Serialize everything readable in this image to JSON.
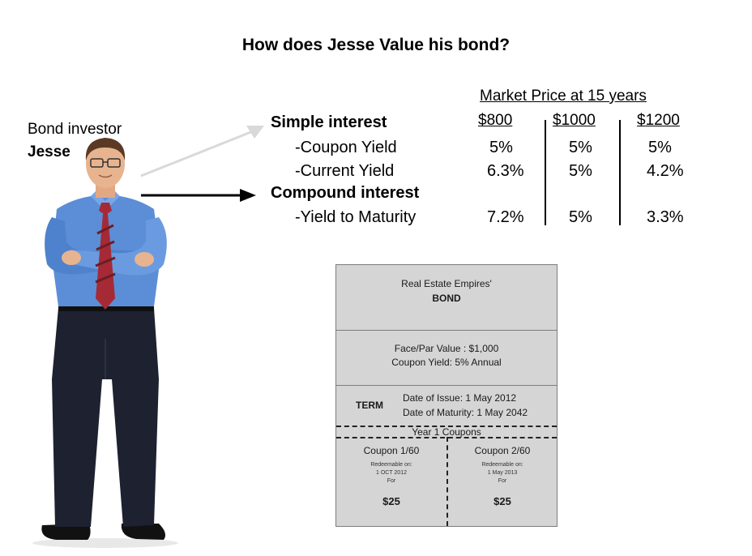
{
  "title": "How does Jesse Value his bond?",
  "investor": {
    "label": "Bond investor",
    "name": "Jesse"
  },
  "concepts": {
    "simple": {
      "heading": "Simple interest",
      "items": [
        "-Coupon Yield",
        "-Current Yield"
      ]
    },
    "compound": {
      "heading": "Compound interest",
      "items": [
        "-Yield to Maturity"
      ]
    }
  },
  "market_table": {
    "title": "Market Price at 15 years",
    "columns": [
      "$800",
      "$1000",
      "$1200"
    ],
    "rows": [
      {
        "metric": "-Coupon Yield",
        "values": [
          "5%",
          "5%",
          "5%"
        ]
      },
      {
        "metric": "-Current Yield",
        "values": [
          "6.3%",
          "5%",
          "4.2%"
        ]
      },
      {
        "metric": "-Yield to Maturity",
        "values": [
          "7.2%",
          "5%",
          "3.3%"
        ]
      }
    ]
  },
  "bond": {
    "issuer": "Real Estate Empires'",
    "label": "BOND",
    "face_value": "Face/Par Value : $1,000",
    "coupon_yield": "Coupon Yield: 5% Annual",
    "term_label": "TERM",
    "issue_date": "Date of Issue: 1 May 2012",
    "maturity_date": "Date of Maturity: 1 May 2042",
    "coupons_header": "Year 1 Coupons",
    "coupons": [
      {
        "title": "Coupon 1/60",
        "redeem_label": "Redeemable on:",
        "date": "1 OCT 2012",
        "for_label": "For",
        "amount": "$25"
      },
      {
        "title": "Coupon 2/60",
        "redeem_label": "Redeemable on:",
        "date": "1 May 2013",
        "for_label": "For",
        "amount": "$25"
      }
    ]
  },
  "colors": {
    "shirt": "#5b8ed6",
    "tie": "#a52a35",
    "pants": "#1d2130",
    "bond_bg": "#d5d5d5",
    "arrow_light": "#d9d9d9",
    "arrow_dark": "#000000"
  }
}
